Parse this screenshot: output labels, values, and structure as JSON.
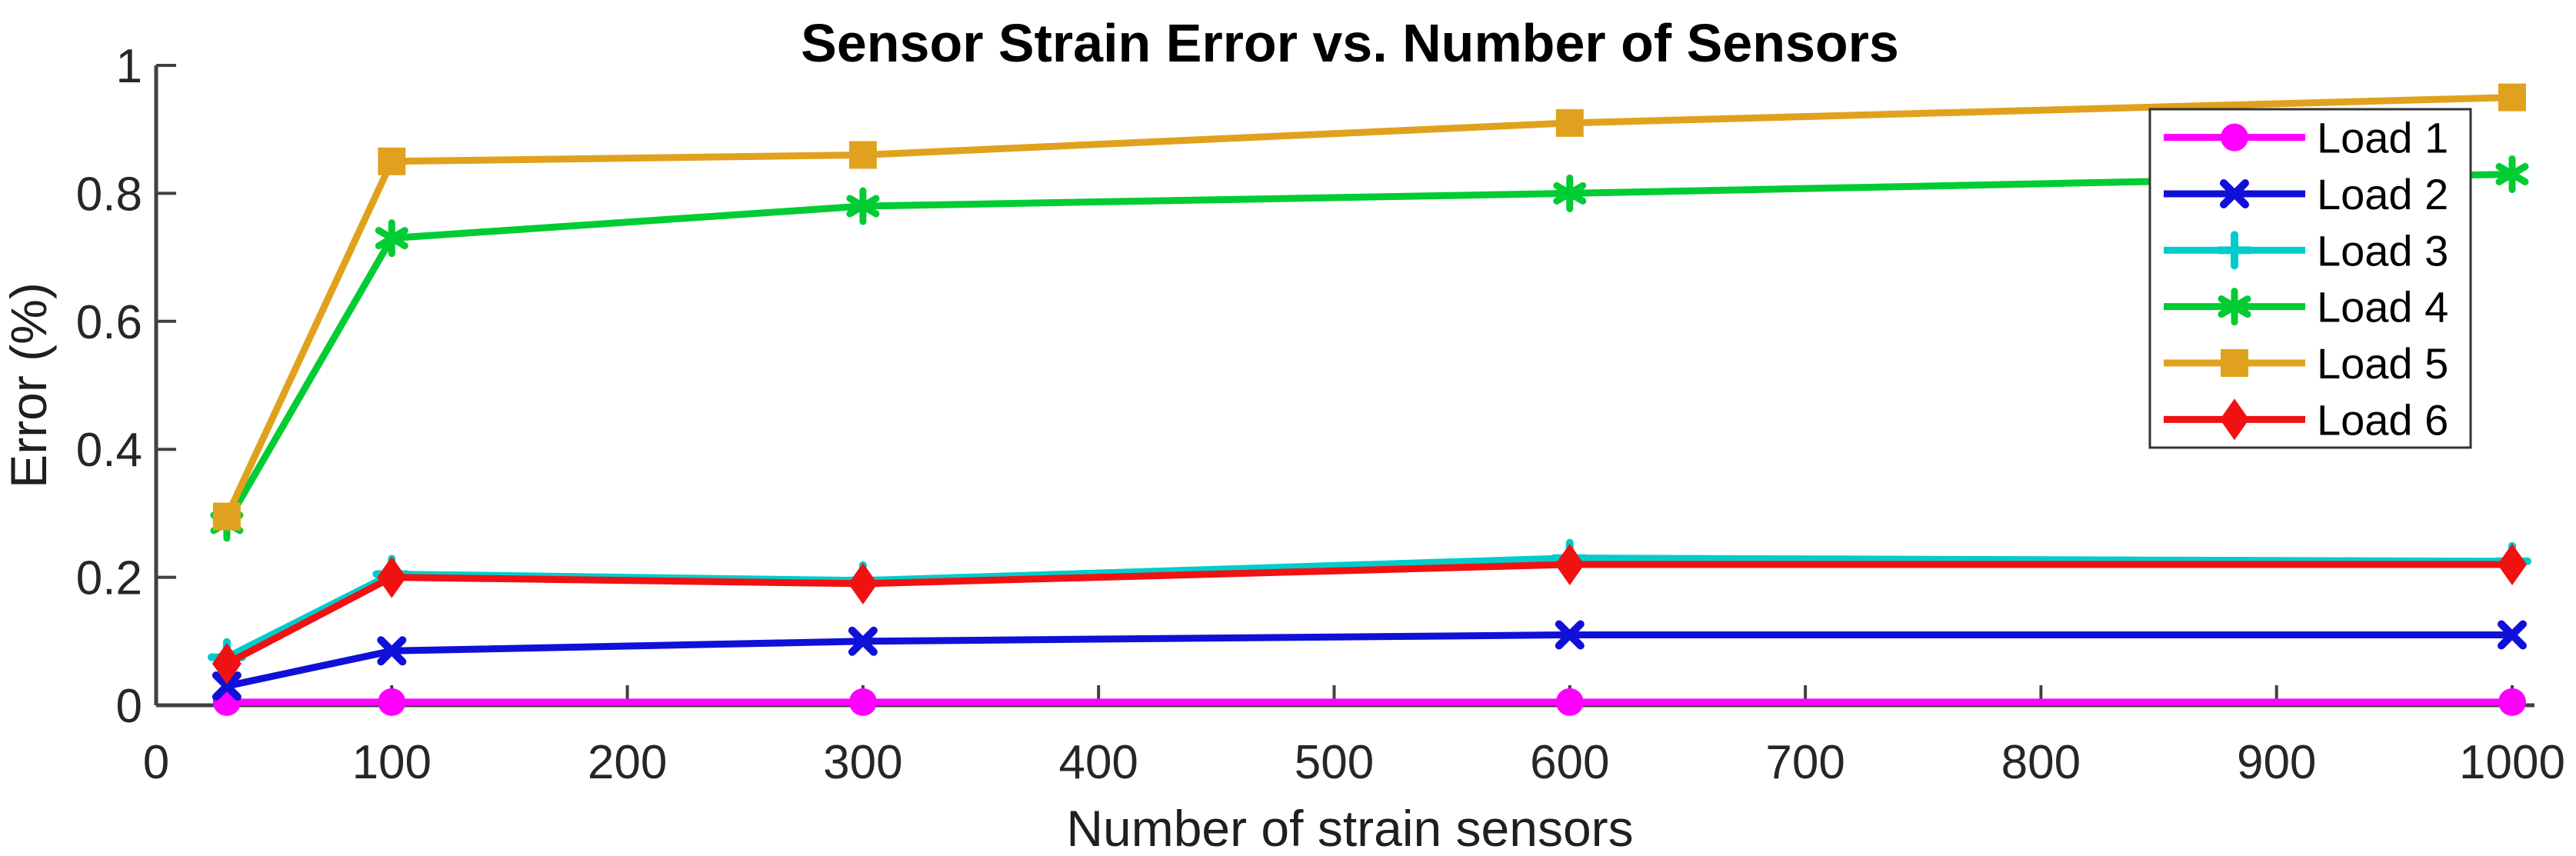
{
  "chart_data": {
    "type": "line",
    "title": "Sensor Strain Error vs. Number of Sensors",
    "xlabel": "Number of strain sensors",
    "ylabel": "Error (%)",
    "x": [
      30,
      100,
      300,
      600,
      1000
    ],
    "xlim": [
      0,
      1010
    ],
    "ylim": [
      0,
      1
    ],
    "x_tick_labels": [
      "0",
      "100",
      "200",
      "300",
      "400",
      "500",
      "600",
      "700",
      "800",
      "900",
      "1000"
    ],
    "y_tick_labels": [
      "0",
      "0.2",
      "0.4",
      "0.6",
      "0.8",
      "1"
    ],
    "grid": false,
    "legend_position": "top-right",
    "axis_color": "#404040",
    "series": [
      {
        "name": "Load 1",
        "color": "#FF00FF",
        "marker": "circle",
        "values": [
          0.005,
          0.005,
          0.005,
          0.005,
          0.005
        ]
      },
      {
        "name": "Load 2",
        "color": "#1010D8",
        "marker": "x",
        "values": [
          0.03,
          0.085,
          0.1,
          0.11,
          0.11
        ]
      },
      {
        "name": "Load 3",
        "color": "#00CCCC",
        "marker": "plus",
        "values": [
          0.075,
          0.205,
          0.195,
          0.23,
          0.225
        ]
      },
      {
        "name": "Load 4",
        "color": "#00CC33",
        "marker": "asterisk",
        "values": [
          0.285,
          0.73,
          0.78,
          0.8,
          0.83
        ]
      },
      {
        "name": "Load 5",
        "color": "#E0A21E",
        "marker": "square",
        "values": [
          0.295,
          0.85,
          0.86,
          0.91,
          0.95
        ]
      },
      {
        "name": "Load 6",
        "color": "#F01212",
        "marker": "diamond",
        "values": [
          0.065,
          0.2,
          0.19,
          0.22,
          0.22
        ]
      }
    ]
  }
}
